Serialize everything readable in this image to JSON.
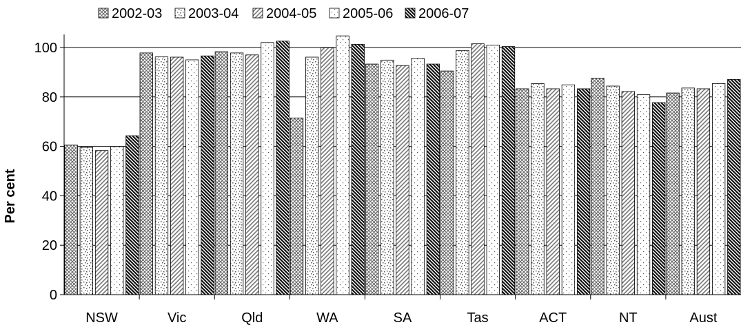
{
  "chart_data": {
    "type": "bar",
    "title": "",
    "xlabel": "",
    "ylabel": "Per cent",
    "ylim": [
      0,
      100
    ],
    "yticks": [
      0,
      20,
      40,
      60,
      80,
      100
    ],
    "grid": true,
    "legend_position": "top",
    "categories": [
      "NSW",
      "Vic",
      "Qld",
      "WA",
      "SA",
      "Tas",
      "ACT",
      "NT",
      "Aust"
    ],
    "series": [
      {
        "name": "2002-03",
        "pattern": "crosshatch",
        "values": [
          60.5,
          97.8,
          98.3,
          71.5,
          93.3,
          90.5,
          83.3,
          87.6,
          81.6
        ]
      },
      {
        "name": "2003-04",
        "pattern": "checker-dots",
        "values": [
          59.6,
          96.2,
          97.8,
          96.1,
          94.9,
          98.8,
          85.4,
          84.4,
          83.6
        ]
      },
      {
        "name": "2004-05",
        "pattern": "diagonal",
        "values": [
          58.3,
          96.1,
          97.0,
          99.9,
          92.7,
          101.5,
          83.3,
          82.2,
          83.3
        ]
      },
      {
        "name": "2005-06",
        "pattern": "sparse-dots",
        "values": [
          59.9,
          95.0,
          102.0,
          104.7,
          95.6,
          101.0,
          84.9,
          80.9,
          85.4
        ]
      },
      {
        "name": "2006-07",
        "pattern": "dense-diagonal",
        "values": [
          64.3,
          96.6,
          102.6,
          101.3,
          93.3,
          100.4,
          83.3,
          77.7,
          87.1
        ]
      }
    ]
  }
}
